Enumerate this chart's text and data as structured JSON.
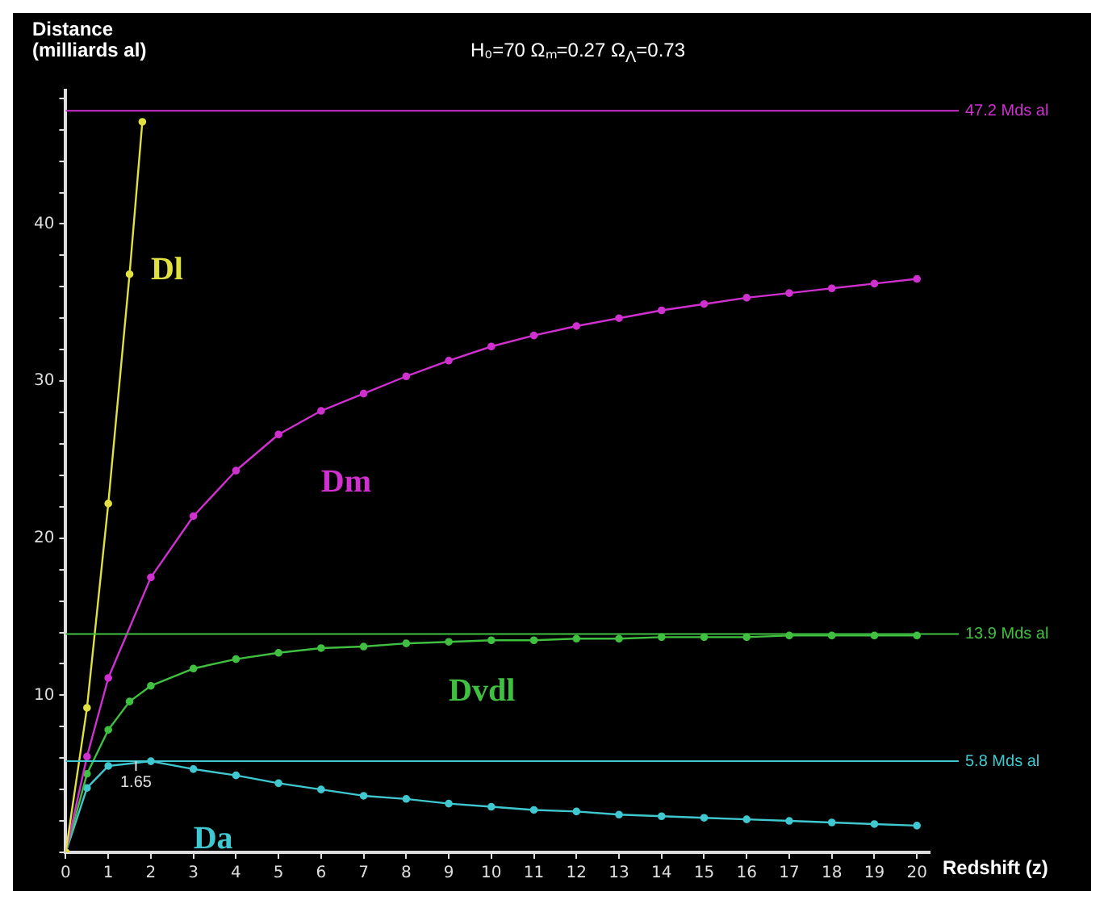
{
  "chart_data": {
    "type": "line",
    "title": "H₀=70  Ωₘ=0.27  Ω$_{Λ}$=0.73",
    "xlabel": "Redshift (z)",
    "ylabel": "Distance (milliards al)",
    "xlim": [
      0,
      20.3
    ],
    "xticks": [
      0,
      1,
      2,
      3,
      4,
      5,
      6,
      7,
      8,
      9,
      10,
      11,
      12,
      13,
      14,
      15,
      16,
      17,
      18,
      19,
      20
    ],
    "ylim": [
      0,
      48.5
    ],
    "yticks": [
      {
        "value": 0,
        "label": null
      },
      {
        "value": 2,
        "label": null
      },
      {
        "value": 4,
        "label": null
      },
      {
        "value": 6,
        "label": null
      },
      {
        "value": 8,
        "label": null
      },
      10,
      {
        "value": 12,
        "label": null
      },
      {
        "value": 14,
        "label": null
      },
      {
        "value": 16,
        "label": null
      },
      {
        "value": 18,
        "label": null
      },
      20,
      {
        "value": 22,
        "label": null
      },
      {
        "value": 24,
        "label": null
      },
      {
        "value": 26,
        "label": null
      },
      {
        "value": 28,
        "label": null
      },
      30,
      {
        "value": 32,
        "label": null
      },
      {
        "value": 34,
        "label": null
      },
      {
        "value": 36,
        "label": null
      },
      {
        "value": 38,
        "label": null
      },
      40,
      {
        "value": 42,
        "label": null
      },
      {
        "value": 44,
        "label": null
      },
      {
        "value": 46,
        "label": null
      },
      {
        "value": 48,
        "label": null
      }
    ],
    "grid": false,
    "legend": false,
    "marker": "circle",
    "line_style": "solid",
    "series": [
      {
        "name": "Dl",
        "color": "#e0e040",
        "x": [
          0,
          0.5,
          1,
          1.5,
          1.8
        ],
        "values": [
          0,
          9.2,
          22.2,
          36.8,
          46.5
        ]
      },
      {
        "name": "Dm",
        "color": "#d030d0",
        "x": [
          0,
          0.5,
          1,
          2,
          3,
          4,
          5,
          6,
          7,
          8,
          9,
          10,
          11,
          12,
          13,
          14,
          15,
          16,
          17,
          18,
          19,
          20
        ],
        "values": [
          0,
          6.1,
          11.1,
          17.5,
          21.4,
          24.3,
          26.6,
          28.1,
          29.2,
          30.3,
          31.3,
          32.2,
          32.9,
          33.5,
          34.0,
          34.5,
          34.9,
          35.3,
          35.6,
          35.9,
          36.2,
          36.5
        ]
      },
      {
        "name": "Dvdl",
        "color": "#40c040",
        "x": [
          0,
          0.5,
          1,
          1.5,
          2,
          3,
          4,
          5,
          6,
          7,
          8,
          9,
          10,
          11,
          12,
          13,
          14,
          15,
          16,
          17,
          18,
          19,
          20
        ],
        "values": [
          0,
          5.0,
          7.8,
          9.6,
          10.6,
          11.7,
          12.3,
          12.7,
          13.0,
          13.1,
          13.3,
          13.4,
          13.5,
          13.5,
          13.6,
          13.6,
          13.7,
          13.7,
          13.7,
          13.8,
          13.8,
          13.8,
          13.8
        ]
      },
      {
        "name": "Da",
        "color": "#40c8d0",
        "x": [
          0,
          0.5,
          1,
          2,
          3,
          4,
          5,
          6,
          7,
          8,
          9,
          10,
          11,
          12,
          13,
          14,
          15,
          16,
          17,
          18,
          19,
          20
        ],
        "values": [
          0,
          4.1,
          5.5,
          5.8,
          5.3,
          4.9,
          4.4,
          4.0,
          3.6,
          3.4,
          3.1,
          2.9,
          2.7,
          2.6,
          2.4,
          2.3,
          2.2,
          2.1,
          2.0,
          1.9,
          1.8,
          1.7
        ]
      }
    ],
    "ref_lines": [
      {
        "axis": "y",
        "value": 47.2,
        "label": "47.2 Mds al",
        "color": "#d030d0"
      },
      {
        "axis": "y",
        "value": 13.9,
        "label": "13.9 Mds al",
        "color": "#40c040"
      },
      {
        "axis": "y",
        "value": 5.8,
        "label": "5.8 Mds al",
        "color": "#40c8d0"
      }
    ],
    "annotations": [
      {
        "text": "1.65",
        "x": 1.65,
        "y": 5.8
      }
    ]
  }
}
